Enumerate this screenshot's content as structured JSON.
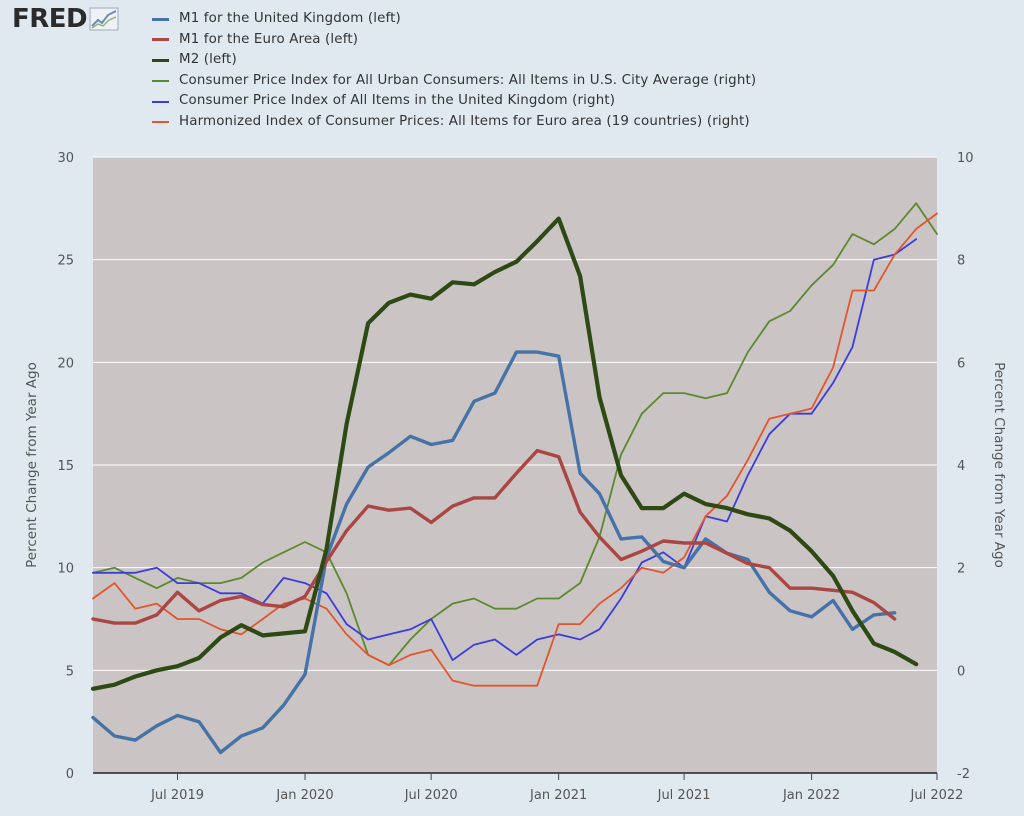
{
  "logo": {
    "text": "FRED",
    "icon": "line-chart-icon"
  },
  "chart_data": {
    "type": "line",
    "title": "",
    "ylabel_left": "Percent Change from Year Ago",
    "ylabel_right": "Percent Change from Year Ago",
    "y_left_range": [
      0,
      30
    ],
    "y_right_range": [
      -2,
      10
    ],
    "y_left_ticks": [
      "0",
      "5",
      "10",
      "15",
      "20",
      "25",
      "30"
    ],
    "y_right_ticks": [
      "-2",
      "0",
      "2",
      "4",
      "6",
      "8",
      "10"
    ],
    "x_range": [
      "2019-03-01",
      "2022-07-01"
    ],
    "x_ticks": [
      {
        "date": "2019-07-01",
        "label": "Jul 2019"
      },
      {
        "date": "2020-01-01",
        "label": "Jan 2020"
      },
      {
        "date": "2020-07-01",
        "label": "Jul 2020"
      },
      {
        "date": "2021-01-01",
        "label": "Jan 2021"
      },
      {
        "date": "2021-07-01",
        "label": "Jul 2021"
      },
      {
        "date": "2022-01-01",
        "label": "Jan 2022"
      },
      {
        "date": "2022-07-01",
        "label": "Jul 2022"
      }
    ],
    "grid": "horizontal",
    "legend_position": "top",
    "plot_background": "#cbc4c4",
    "series": [
      {
        "name": "M1 for the United Kingdom (left)",
        "axis": "left",
        "color": "#4572a7",
        "width": 3.4,
        "dates": [
          "2019-03-01",
          "2019-04-01",
          "2019-05-01",
          "2019-06-01",
          "2019-07-01",
          "2019-08-01",
          "2019-09-01",
          "2019-10-01",
          "2019-11-01",
          "2019-12-01",
          "2020-01-01",
          "2020-02-01",
          "2020-03-01",
          "2020-04-01",
          "2020-05-01",
          "2020-06-01",
          "2020-07-01",
          "2020-08-01",
          "2020-09-01",
          "2020-10-01",
          "2020-11-01",
          "2020-12-01",
          "2021-01-01",
          "2021-02-01",
          "2021-03-01",
          "2021-04-01",
          "2021-05-01",
          "2021-06-01",
          "2021-07-01",
          "2021-08-01",
          "2021-09-01",
          "2021-10-01",
          "2021-11-01",
          "2021-12-01",
          "2022-01-01",
          "2022-02-01",
          "2022-03-01",
          "2022-04-01",
          "2022-05-01",
          "2022-06-01"
        ],
        "values": [
          2.7,
          1.8,
          1.6,
          2.3,
          2.8,
          2.5,
          1.0,
          1.8,
          2.2,
          3.3,
          4.8,
          10.5,
          13.1,
          14.9,
          15.6,
          16.4,
          16.0,
          16.2,
          18.1,
          18.5,
          20.5,
          20.5,
          20.3,
          14.6,
          13.6,
          11.4,
          11.5,
          10.3,
          10.0,
          11.4,
          10.7,
          10.4,
          8.8,
          7.9,
          7.6,
          8.4,
          7.0,
          7.7,
          7.8,
          null
        ]
      },
      {
        "name": "M1 for the Euro Area (left)",
        "axis": "left",
        "color": "#aa4643",
        "width": 3.4,
        "dates": [
          "2019-03-01",
          "2019-04-01",
          "2019-05-01",
          "2019-06-01",
          "2019-07-01",
          "2019-08-01",
          "2019-09-01",
          "2019-10-01",
          "2019-11-01",
          "2019-12-01",
          "2020-01-01",
          "2020-02-01",
          "2020-03-01",
          "2020-04-01",
          "2020-05-01",
          "2020-06-01",
          "2020-07-01",
          "2020-08-01",
          "2020-09-01",
          "2020-10-01",
          "2020-11-01",
          "2020-12-01",
          "2021-01-01",
          "2021-02-01",
          "2021-03-01",
          "2021-04-01",
          "2021-05-01",
          "2021-06-01",
          "2021-07-01",
          "2021-08-01",
          "2021-09-01",
          "2021-10-01",
          "2021-11-01",
          "2021-12-01",
          "2022-01-01",
          "2022-02-01",
          "2022-03-01",
          "2022-04-01",
          "2022-05-01",
          "2022-06-01"
        ],
        "values": [
          7.5,
          7.3,
          7.3,
          7.7,
          8.8,
          7.9,
          8.4,
          8.6,
          8.2,
          8.1,
          8.6,
          10.3,
          11.8,
          13.0,
          12.8,
          12.9,
          12.2,
          13.0,
          13.4,
          13.4,
          14.6,
          15.7,
          15.4,
          12.7,
          11.5,
          10.4,
          10.8,
          11.3,
          11.2,
          11.2,
          10.7,
          10.2,
          10.0,
          9.0,
          9.0,
          8.9,
          8.8,
          8.3,
          7.5,
          null
        ]
      },
      {
        "name": "M2 (left)",
        "axis": "left",
        "color": "#2e4a14",
        "width": 4.2,
        "dates": [
          "2019-03-01",
          "2019-04-01",
          "2019-05-01",
          "2019-06-01",
          "2019-07-01",
          "2019-08-01",
          "2019-09-01",
          "2019-10-01",
          "2019-11-01",
          "2019-12-01",
          "2020-01-01",
          "2020-02-01",
          "2020-03-01",
          "2020-04-01",
          "2020-05-01",
          "2020-06-01",
          "2020-07-01",
          "2020-08-01",
          "2020-09-01",
          "2020-10-01",
          "2020-11-01",
          "2020-12-01",
          "2021-01-01",
          "2021-02-01",
          "2021-03-01",
          "2021-04-01",
          "2021-05-01",
          "2021-06-01",
          "2021-07-01",
          "2021-08-01",
          "2021-09-01",
          "2021-10-01",
          "2021-11-01",
          "2021-12-01",
          "2022-01-01",
          "2022-02-01",
          "2022-03-01",
          "2022-04-01",
          "2022-05-01",
          "2022-06-01",
          "2022-07-01"
        ],
        "values": [
          4.1,
          4.3,
          4.7,
          5.0,
          5.2,
          5.6,
          6.6,
          7.2,
          6.7,
          6.8,
          6.9,
          10.9,
          17.0,
          21.9,
          22.9,
          23.3,
          23.1,
          23.9,
          23.8,
          24.4,
          24.9,
          25.9,
          27.0,
          24.2,
          18.3,
          14.5,
          12.9,
          12.9,
          13.6,
          13.1,
          12.9,
          12.6,
          12.4,
          11.8,
          10.8,
          9.6,
          7.9,
          6.3,
          5.9,
          5.3,
          null
        ]
      },
      {
        "name": "Consumer Price Index for All Urban Consumers: All Items in U.S. City Average (right)",
        "axis": "right",
        "color": "#5b8a2e",
        "width": 1.8,
        "dates": [
          "2019-03-01",
          "2019-04-01",
          "2019-05-01",
          "2019-06-01",
          "2019-07-01",
          "2019-08-01",
          "2019-09-01",
          "2019-10-01",
          "2019-11-01",
          "2019-12-01",
          "2020-01-01",
          "2020-02-01",
          "2020-03-01",
          "2020-04-01",
          "2020-05-01",
          "2020-06-01",
          "2020-07-01",
          "2020-08-01",
          "2020-09-01",
          "2020-10-01",
          "2020-11-01",
          "2020-12-01",
          "2021-01-01",
          "2021-02-01",
          "2021-03-01",
          "2021-04-01",
          "2021-05-01",
          "2021-06-01",
          "2021-07-01",
          "2021-08-01",
          "2021-09-01",
          "2021-10-01",
          "2021-11-01",
          "2021-12-01",
          "2022-01-01",
          "2022-02-01",
          "2022-03-01",
          "2022-04-01",
          "2022-05-01",
          "2022-06-01",
          "2022-07-01"
        ],
        "values": [
          1.9,
          2.0,
          1.8,
          1.6,
          1.8,
          1.7,
          1.7,
          1.8,
          2.1,
          2.3,
          2.5,
          2.3,
          1.5,
          0.3,
          0.1,
          0.6,
          1.0,
          1.3,
          1.4,
          1.2,
          1.2,
          1.4,
          1.4,
          1.7,
          2.6,
          4.2,
          5.0,
          5.4,
          5.4,
          5.3,
          5.4,
          6.2,
          6.8,
          7.0,
          7.5,
          7.9,
          8.5,
          8.3,
          8.6,
          9.1,
          8.5
        ]
      },
      {
        "name": "Consumer Price Index of All Items in the United Kingdom (right)",
        "axis": "right",
        "color": "#3c3cde",
        "width": 1.8,
        "dates": [
          "2019-03-01",
          "2019-04-01",
          "2019-05-01",
          "2019-06-01",
          "2019-07-01",
          "2019-08-01",
          "2019-09-01",
          "2019-10-01",
          "2019-11-01",
          "2019-12-01",
          "2020-01-01",
          "2020-02-01",
          "2020-03-01",
          "2020-04-01",
          "2020-05-01",
          "2020-06-01",
          "2020-07-01",
          "2020-08-01",
          "2020-09-01",
          "2020-10-01",
          "2020-11-01",
          "2020-12-01",
          "2021-01-01",
          "2021-02-01",
          "2021-03-01",
          "2021-04-01",
          "2021-05-01",
          "2021-06-01",
          "2021-07-01",
          "2021-08-01",
          "2021-09-01",
          "2021-10-01",
          "2021-11-01",
          "2021-12-01",
          "2022-01-01",
          "2022-02-01",
          "2022-03-01",
          "2022-04-01",
          "2022-05-01",
          "2022-06-01"
        ],
        "values": [
          1.9,
          1.9,
          1.9,
          2.0,
          1.7,
          1.7,
          1.5,
          1.5,
          1.3,
          1.8,
          1.7,
          1.5,
          0.9,
          0.6,
          0.7,
          0.8,
          1.0,
          0.2,
          0.5,
          0.6,
          0.3,
          0.6,
          0.7,
          0.6,
          0.8,
          1.4,
          2.1,
          2.3,
          2.0,
          3.0,
          2.9,
          3.8,
          4.6,
          5.0,
          5.0,
          5.6,
          6.3,
          8.0,
          8.1,
          8.4
        ]
      },
      {
        "name": "Harmonized Index of Consumer Prices: All Items for Euro area (19 countries) (right)",
        "axis": "right",
        "color": "#e0562e",
        "width": 1.8,
        "dates": [
          "2019-03-01",
          "2019-04-01",
          "2019-05-01",
          "2019-06-01",
          "2019-07-01",
          "2019-08-01",
          "2019-09-01",
          "2019-10-01",
          "2019-11-01",
          "2019-12-01",
          "2020-01-01",
          "2020-02-01",
          "2020-03-01",
          "2020-04-01",
          "2020-05-01",
          "2020-06-01",
          "2020-07-01",
          "2020-08-01",
          "2020-09-01",
          "2020-10-01",
          "2020-11-01",
          "2020-12-01",
          "2021-01-01",
          "2021-02-01",
          "2021-03-01",
          "2021-04-01",
          "2021-05-01",
          "2021-06-01",
          "2021-07-01",
          "2021-08-01",
          "2021-09-01",
          "2021-10-01",
          "2021-11-01",
          "2021-12-01",
          "2022-01-01",
          "2022-02-01",
          "2022-03-01",
          "2022-04-01",
          "2022-05-01",
          "2022-06-01",
          "2022-07-01"
        ],
        "values": [
          1.4,
          1.7,
          1.2,
          1.3,
          1.0,
          1.0,
          0.8,
          0.7,
          1.0,
          1.3,
          1.4,
          1.2,
          0.7,
          0.3,
          0.1,
          0.3,
          0.4,
          -0.2,
          -0.3,
          -0.3,
          -0.3,
          -0.3,
          0.9,
          0.9,
          1.3,
          1.6,
          2.0,
          1.9,
          2.2,
          3.0,
          3.4,
          4.1,
          4.9,
          5.0,
          5.1,
          5.9,
          7.4,
          7.4,
          8.1,
          8.6,
          8.9
        ]
      }
    ]
  }
}
